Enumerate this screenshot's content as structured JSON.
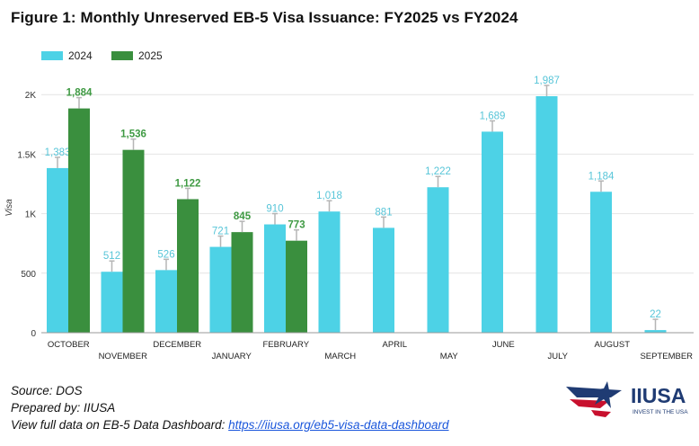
{
  "title": "Figure 1: Monthly Unreserved EB-5 Visa Issuance: FY2025 vs FY2024",
  "colors": {
    "series_2024": "#4dd2e6",
    "series_2025": "#3a8f3e",
    "label_2024": "#57c5d8",
    "label_2025": "#3f9a43",
    "logo_blue": "#1f3b73",
    "logo_red": "#c8102e"
  },
  "chart_data": {
    "type": "bar",
    "categories": [
      "OCTOBER",
      "NOVEMBER",
      "DECEMBER",
      "JANUARY",
      "FEBRUARY",
      "MARCH",
      "APRIL",
      "MAY",
      "JUNE",
      "JULY",
      "AUGUST",
      "SEPTEMBER"
    ],
    "series": [
      {
        "name": "2024",
        "values": [
          1383,
          512,
          526,
          721,
          910,
          1018,
          881,
          1222,
          1689,
          1987,
          1184,
          22
        ],
        "labels": [
          "1,383",
          "512",
          "526",
          "721",
          "910",
          "1,018",
          "881",
          "1,222",
          "1,689",
          "1,987",
          "1,184",
          "22"
        ]
      },
      {
        "name": "2025",
        "values": [
          1884,
          1536,
          1122,
          845,
          773,
          null,
          null,
          null,
          null,
          null,
          null,
          null
        ],
        "labels": [
          "1,884",
          "1,536",
          "1,122",
          "845",
          "773",
          "",
          "",
          "",
          "",
          "",
          "",
          ""
        ]
      }
    ],
    "ylabel": "Visa",
    "ylim": [
      0,
      2100
    ],
    "yticks": [
      0,
      500,
      1000,
      1500,
      2000
    ],
    "ytick_labels": [
      "0",
      "500",
      "1K",
      "1.5K",
      "2K"
    ],
    "grid": true,
    "legend_position": "top-left",
    "error_bars": true
  },
  "footer": {
    "source": "Source: DOS",
    "prepared": "Prepared by: IIUSA",
    "view_text": "View full data on EB-5 Data Dashboard: ",
    "link": "https://iiusa.org/eb5-visa-data-dashboard"
  },
  "logo": {
    "name": "IIUSA",
    "tagline": "INVEST IN THE USA"
  }
}
